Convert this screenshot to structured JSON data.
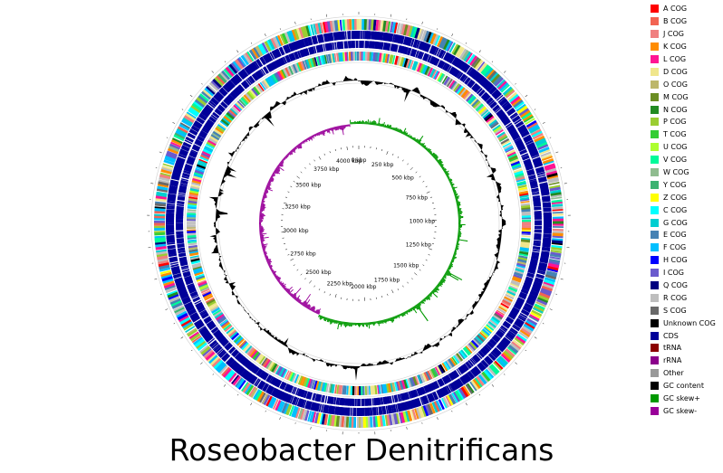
{
  "title": "Roseobacter Denitrificans",
  "genome": {
    "size_kbp": 4100,
    "tick_labels": [
      {
        "kbp": 0,
        "label": "0 kbp"
      },
      {
        "kbp": 250,
        "label": "250 kbp"
      },
      {
        "kbp": 500,
        "label": "500 kbp"
      },
      {
        "kbp": 750,
        "label": "750 kbp"
      },
      {
        "kbp": 1000,
        "label": "1000 kbp"
      },
      {
        "kbp": 1250,
        "label": "1250 kbp"
      },
      {
        "kbp": 1500,
        "label": "1500 kbp"
      },
      {
        "kbp": 1750,
        "label": "1750 kbp"
      },
      {
        "kbp": 2000,
        "label": "2000 kbp"
      },
      {
        "kbp": 2250,
        "label": "2250 kbp"
      },
      {
        "kbp": 2500,
        "label": "2500 kbp"
      },
      {
        "kbp": 2750,
        "label": "2750 kbp"
      },
      {
        "kbp": 3000,
        "label": "3000 kbp"
      },
      {
        "kbp": 3250,
        "label": "3250 kbp"
      },
      {
        "kbp": 3500,
        "label": "3500 kbp"
      },
      {
        "kbp": 3750,
        "label": "3750 kbp"
      },
      {
        "kbp": 4000,
        "label": "4000 kbp"
      }
    ]
  },
  "legend": [
    {
      "label": "A COG",
      "color": "#ff0000"
    },
    {
      "label": "B COG",
      "color": "#f26352"
    },
    {
      "label": "J COG",
      "color": "#f08080"
    },
    {
      "label": "K COG",
      "color": "#ff8c00"
    },
    {
      "label": "L COG",
      "color": "#ff1493"
    },
    {
      "label": "D COG",
      "color": "#f0e68c"
    },
    {
      "label": "O COG",
      "color": "#bdb76b"
    },
    {
      "label": "M COG",
      "color": "#6b8e23"
    },
    {
      "label": "N COG",
      "color": "#228b22"
    },
    {
      "label": "P COG",
      "color": "#9acd32"
    },
    {
      "label": "T COG",
      "color": "#32cd32"
    },
    {
      "label": "U COG",
      "color": "#adff2f"
    },
    {
      "label": "V COG",
      "color": "#00fa9a"
    },
    {
      "label": "W COG",
      "color": "#8fbc8f"
    },
    {
      "label": "Y COG",
      "color": "#3cb371"
    },
    {
      "label": "Z COG",
      "color": "#ffff00"
    },
    {
      "label": "C COG",
      "color": "#00ffff"
    },
    {
      "label": "G COG",
      "color": "#00ced1"
    },
    {
      "label": "E COG",
      "color": "#4682b4"
    },
    {
      "label": "F COG",
      "color": "#00bfff"
    },
    {
      "label": "H COG",
      "color": "#0000ff"
    },
    {
      "label": "I COG",
      "color": "#6a5acd"
    },
    {
      "label": "Q COG",
      "color": "#000080"
    },
    {
      "label": "R COG",
      "color": "#bebebe"
    },
    {
      "label": "S COG",
      "color": "#696969"
    },
    {
      "label": "Unknown COG",
      "color": "#000000"
    },
    {
      "label": "CDS",
      "color": "#000099"
    },
    {
      "label": "tRNA",
      "color": "#8b0000"
    },
    {
      "label": "rRNA",
      "color": "#8b008b"
    },
    {
      "label": "Other",
      "color": "#999999"
    },
    {
      "label": "GC content",
      "color": "#000000"
    },
    {
      "label": "GC skew+",
      "color": "#009900"
    },
    {
      "label": "GC skew-",
      "color": "#990099"
    }
  ]
}
